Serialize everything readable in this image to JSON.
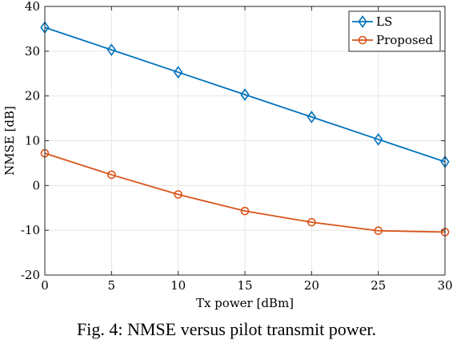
{
  "chart_data": {
    "type": "line",
    "x": [
      0,
      5,
      10,
      15,
      20,
      25,
      30
    ],
    "series": [
      {
        "name": "LS",
        "values": [
          35.3,
          30.3,
          25.3,
          20.3,
          15.3,
          10.3,
          5.3
        ],
        "color": "#0072BD",
        "marker": "diamond"
      },
      {
        "name": "Proposed",
        "values": [
          7.2,
          2.4,
          -2.0,
          -5.7,
          -8.2,
          -10.1,
          -10.4
        ],
        "color": "#D95319",
        "marker": "circle"
      }
    ],
    "xlabel": "Tx power [dBm]",
    "ylabel": "NMSE [dB]",
    "xlim": [
      0,
      30
    ],
    "ylim": [
      -20,
      40
    ],
    "xticks": [
      0,
      5,
      10,
      15,
      20,
      25,
      30
    ],
    "yticks": [
      -20,
      -10,
      0,
      10,
      20,
      30,
      40
    ],
    "xtick_labels": [
      "0",
      "5",
      "10",
      "15",
      "20",
      "25",
      "30"
    ],
    "ytick_labels": [
      "-20",
      "-10",
      "0",
      "10",
      "20",
      "30",
      "40"
    ],
    "grid": true,
    "legend_position": "top-right"
  },
  "caption": "Fig. 4: NMSE versus pilot transmit power."
}
